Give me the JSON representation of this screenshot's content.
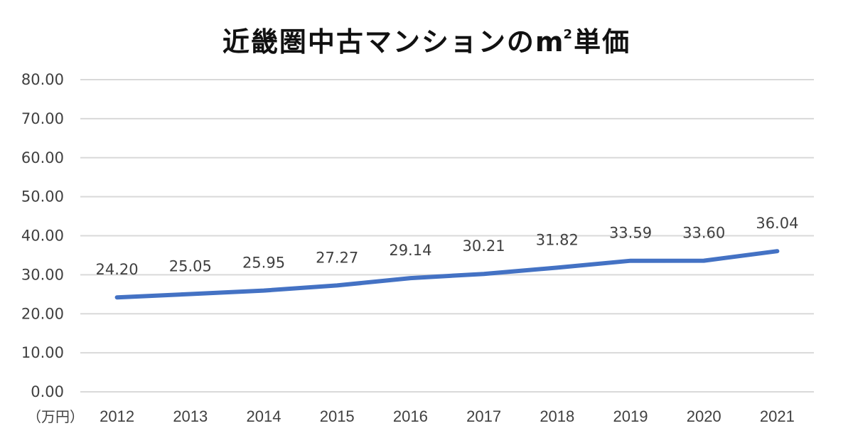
{
  "chart_data": {
    "type": "line",
    "title": "近畿圏中古マンションの㎡単価",
    "title_main": "近畿圏中古マンションのm",
    "title_sup": "2",
    "title_tail": "単価",
    "xlabel": "",
    "ylabel": "（万円）",
    "categories": [
      "2012",
      "2013",
      "2014",
      "2015",
      "2016",
      "2017",
      "2018",
      "2019",
      "2020",
      "2021"
    ],
    "series": [
      {
        "name": "㎡単価",
        "values": [
          24.2,
          25.05,
          25.95,
          27.27,
          29.14,
          30.21,
          31.82,
          33.59,
          33.6,
          36.04
        ],
        "labels": [
          "24.20",
          "25.05",
          "25.95",
          "27.27",
          "29.14",
          "30.21",
          "31.82",
          "33.59",
          "33.60",
          "36.04"
        ],
        "color": "#4472C4"
      }
    ],
    "ylim": [
      0,
      80
    ],
    "yticks": [
      "0.00",
      "10.00",
      "20.00",
      "30.00",
      "40.00",
      "50.00",
      "60.00",
      "70.00",
      "80.00"
    ],
    "grid": true,
    "legend": "none",
    "colors": {
      "line": "#4472C4",
      "grid": "#D9D9D9",
      "text": "#404040"
    }
  }
}
